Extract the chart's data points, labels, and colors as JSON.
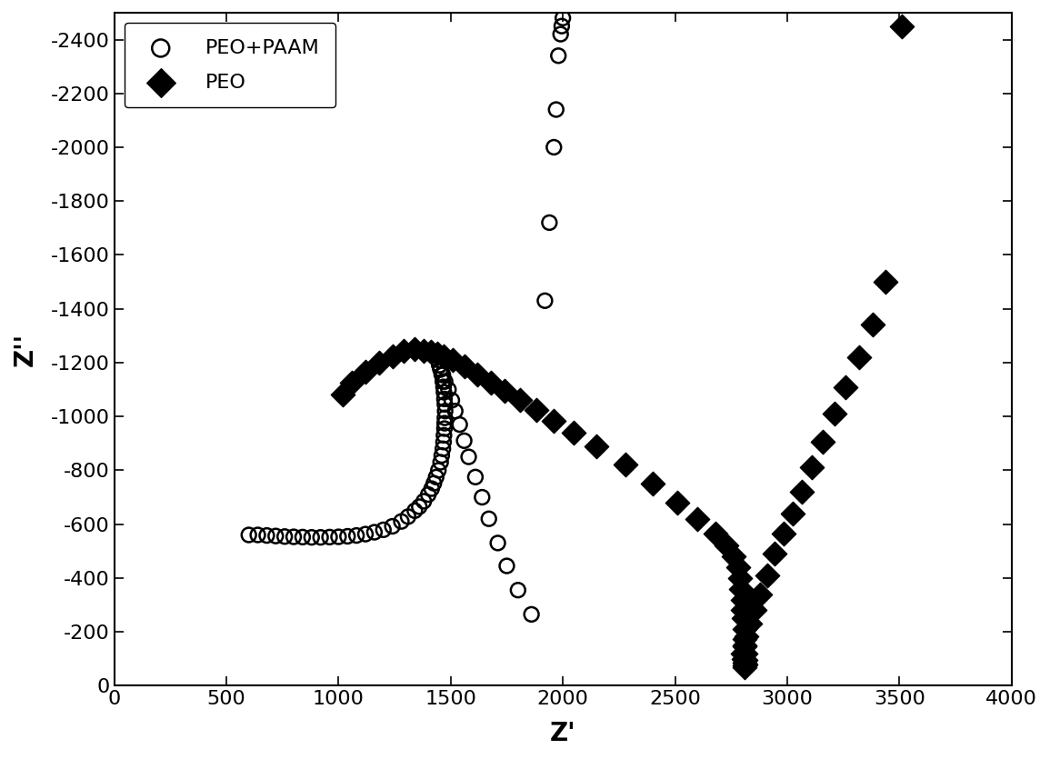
{
  "peo_paam_x": [
    600,
    640,
    680,
    720,
    760,
    800,
    840,
    880,
    920,
    960,
    1000,
    1040,
    1080,
    1120,
    1160,
    1200,
    1240,
    1280,
    1310,
    1340,
    1360,
    1380,
    1400,
    1415,
    1425,
    1435,
    1445,
    1455,
    1460,
    1465,
    1468,
    1470,
    1472,
    1473,
    1474,
    1475,
    1474,
    1472,
    1470,
    1468,
    1465,
    1460,
    1455,
    1450,
    1445,
    1450,
    1455,
    1465,
    1475,
    1490,
    1505,
    1520,
    1540,
    1560,
    1580,
    1610,
    1640,
    1670,
    1710,
    1750,
    1800,
    1860,
    1920,
    1940,
    1960,
    1970,
    1980,
    1990,
    1995,
    2000
  ],
  "peo_paam_y": [
    -560,
    -560,
    -558,
    -556,
    -554,
    -553,
    -552,
    -551,
    -551,
    -552,
    -553,
    -555,
    -558,
    -563,
    -570,
    -579,
    -592,
    -610,
    -628,
    -650,
    -665,
    -685,
    -710,
    -732,
    -752,
    -775,
    -800,
    -830,
    -855,
    -880,
    -905,
    -930,
    -955,
    -975,
    -995,
    -1020,
    -1045,
    -1065,
    -1090,
    -1110,
    -1130,
    -1155,
    -1175,
    -1190,
    -1210,
    -1190,
    -1175,
    -1155,
    -1130,
    -1100,
    -1060,
    -1020,
    -970,
    -910,
    -850,
    -775,
    -700,
    -620,
    -530,
    -445,
    -355,
    -265,
    -1430,
    -1720,
    -2000,
    -2140,
    -2340,
    -2420,
    -2450,
    -2480
  ],
  "peo_x": [
    1020,
    1060,
    1120,
    1180,
    1240,
    1290,
    1340,
    1380,
    1410,
    1440,
    1470,
    1510,
    1560,
    1620,
    1680,
    1740,
    1810,
    1880,
    1960,
    2050,
    2150,
    2280,
    2400,
    2510,
    2600,
    2680,
    2730,
    2760,
    2780,
    2790,
    2795,
    2800,
    2803,
    2806,
    2808,
    2810,
    2811,
    2812,
    2813,
    2812,
    2811,
    2810,
    2808,
    2806,
    2803,
    2810,
    2820,
    2835,
    2855,
    2880,
    2910,
    2945,
    2985,
    3025,
    3065,
    3110,
    3160,
    3210,
    3260,
    3320,
    3380,
    3440,
    3510
  ],
  "peo_y": [
    -1080,
    -1125,
    -1165,
    -1200,
    -1225,
    -1245,
    -1250,
    -1245,
    -1240,
    -1235,
    -1225,
    -1210,
    -1185,
    -1155,
    -1125,
    -1095,
    -1060,
    -1025,
    -985,
    -940,
    -890,
    -820,
    -750,
    -680,
    -620,
    -565,
    -520,
    -480,
    -440,
    -400,
    -360,
    -320,
    -280,
    -250,
    -210,
    -175,
    -145,
    -118,
    -95,
    -80,
    -70,
    -75,
    -85,
    -100,
    -120,
    -150,
    -185,
    -230,
    -280,
    -340,
    -410,
    -490,
    -565,
    -640,
    -720,
    -810,
    -905,
    -1010,
    -1110,
    -1220,
    -1340,
    -1500,
    -2450
  ],
  "xlim": [
    0,
    4000
  ],
  "ylim_bottom": 0,
  "ylim_top": -2500,
  "xticks": [
    0,
    500,
    1000,
    1500,
    2000,
    2500,
    3000,
    3500,
    4000
  ],
  "yticks": [
    0,
    -200,
    -400,
    -600,
    -800,
    -1000,
    -1200,
    -1400,
    -1600,
    -1800,
    -2000,
    -2200,
    -2400
  ],
  "xlabel": "Z'",
  "ylabel": "Z''",
  "legend_labels": [
    "PEO+PAAM",
    "PEO"
  ],
  "bg_color": "#ffffff",
  "circle_color": "#000000",
  "diamond_color": "#000000",
  "marker_size_circle": 130,
  "marker_size_diamond": 180,
  "circle_linewidth": 1.8,
  "axis_fontsize": 20,
  "tick_fontsize": 16,
  "legend_fontsize": 16
}
